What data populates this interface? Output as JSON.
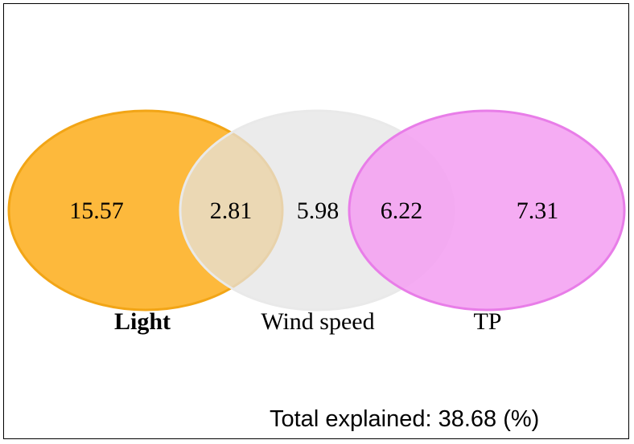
{
  "venn": {
    "sets": [
      {
        "label": "Light",
        "fill": "#fdb531",
        "stroke": "#f2a516",
        "bold": true
      },
      {
        "label": "Wind speed",
        "fill": "#e3e3e3",
        "stroke": "#e9e9e9",
        "bold": false
      },
      {
        "label": "TP",
        "fill": "#f4a0f1",
        "stroke": "#e87de8",
        "bold": false
      }
    ],
    "regions": {
      "light_only": "15.57",
      "light_wind": "2.81",
      "wind_only": "5.98",
      "wind_tp": "6.22",
      "tp_only": "7.31"
    }
  },
  "footer": {
    "total_text": "Total explained: 38.68 (%)"
  }
}
